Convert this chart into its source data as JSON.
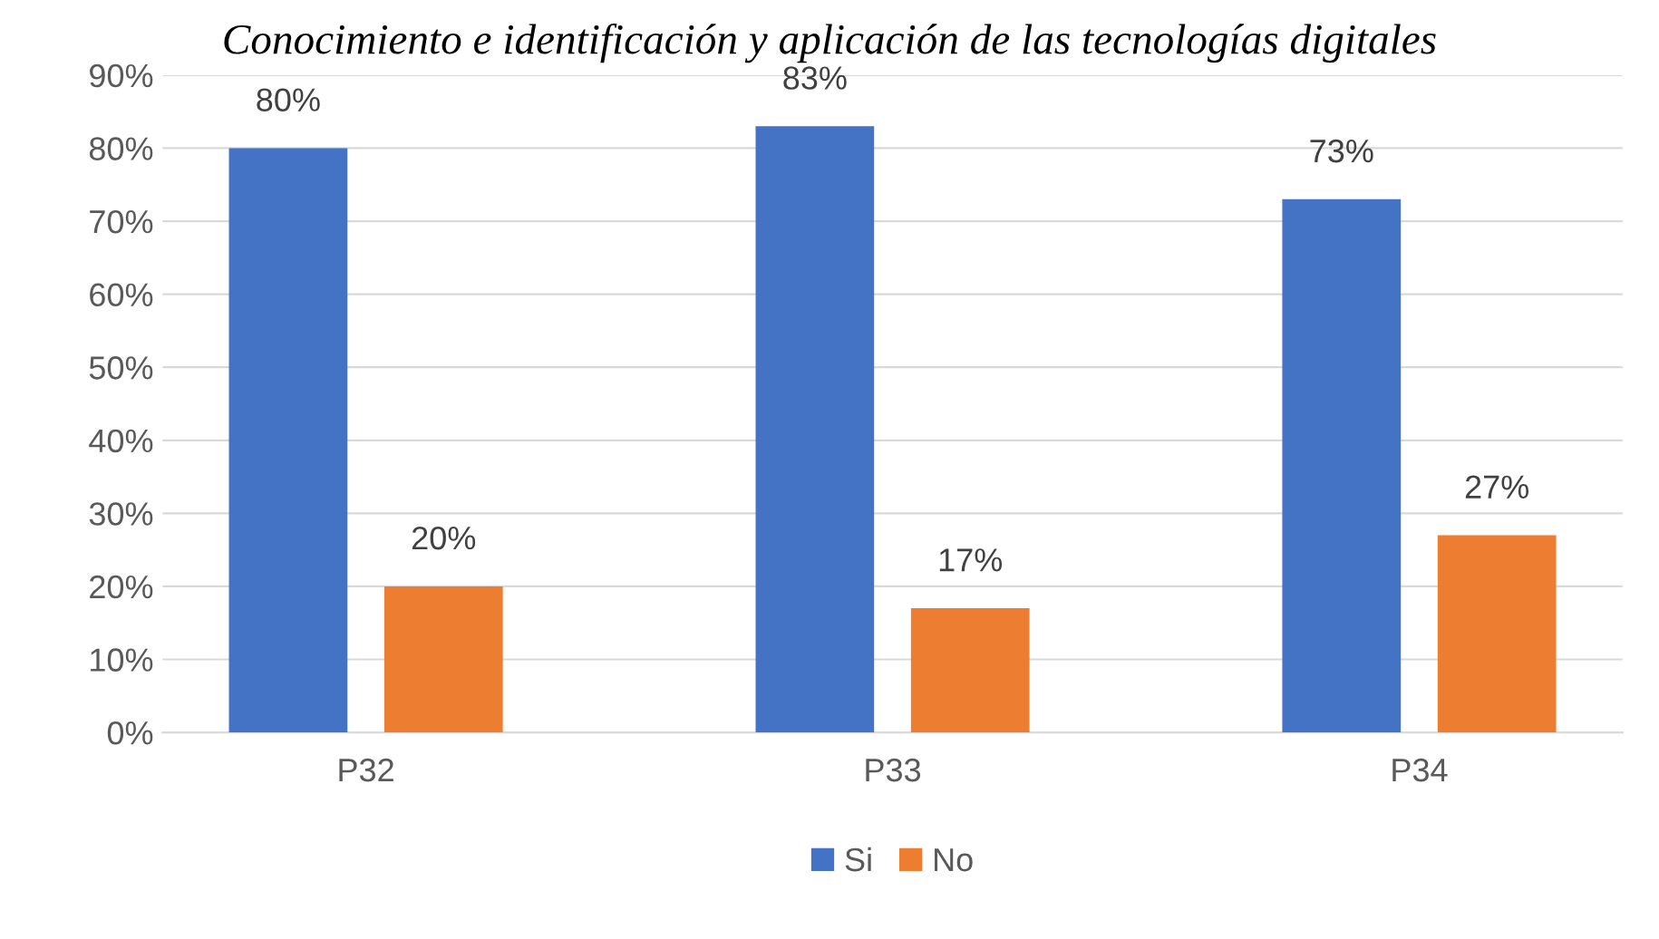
{
  "chart_data": {
    "type": "bar",
    "title": "Conocimiento e identificación y aplicación de las tecnologías digitales",
    "categories": [
      "P32",
      "P33",
      "P34"
    ],
    "series": [
      {
        "name": "Si",
        "color": "#4472c4",
        "values": [
          80,
          83,
          73
        ],
        "value_labels": [
          "80%",
          "83%",
          "73%"
        ]
      },
      {
        "name": "No",
        "color": "#ed7d31",
        "values": [
          20,
          17,
          27
        ],
        "value_labels": [
          "20%",
          "17%",
          "27%"
        ]
      }
    ],
    "ylim": [
      0,
      90
    ],
    "yticks": [
      {
        "value": 0,
        "label": "0%"
      },
      {
        "value": 10,
        "label": "10%"
      },
      {
        "value": 20,
        "label": "20%"
      },
      {
        "value": 30,
        "label": "30%"
      },
      {
        "value": 40,
        "label": "40%"
      },
      {
        "value": 50,
        "label": "50%"
      },
      {
        "value": 60,
        "label": "60%"
      },
      {
        "value": 70,
        "label": "70%"
      },
      {
        "value": 80,
        "label": "80%"
      },
      {
        "value": 90,
        "label": "90%"
      }
    ],
    "grid": "y",
    "legend": "bottom"
  }
}
